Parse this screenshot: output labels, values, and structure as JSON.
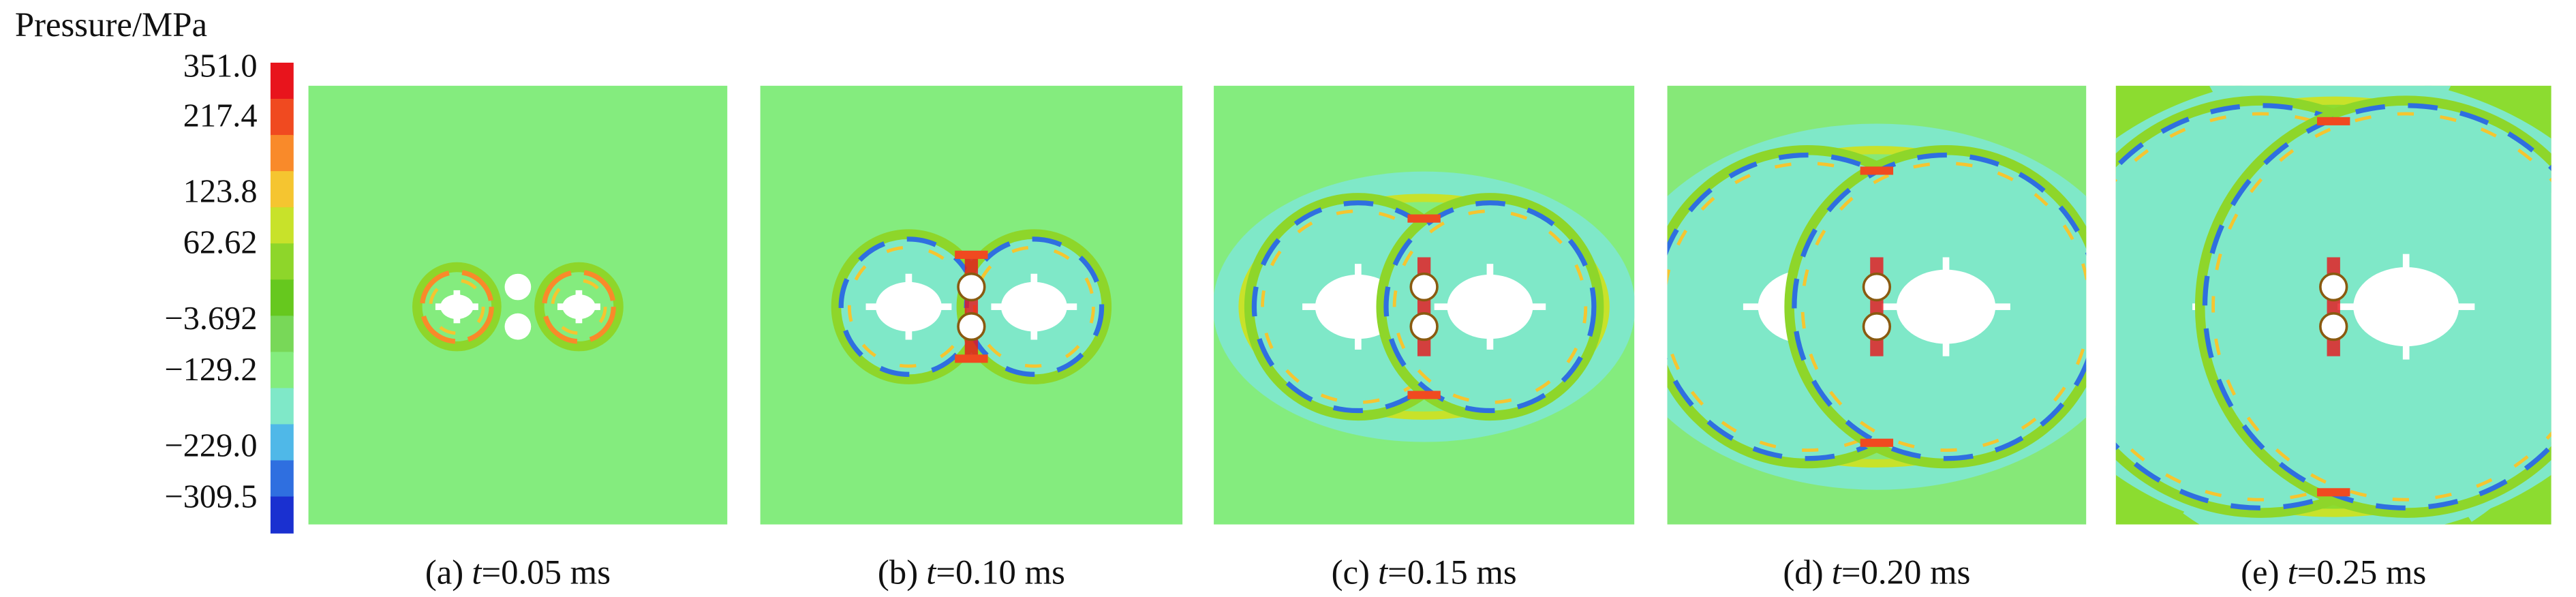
{
  "colorbar": {
    "title": "Pressure/MPa",
    "labels": [
      "351.0",
      "217.4",
      "123.8",
      "62.62",
      "−3.692",
      "−129.2",
      "−229.0",
      "−309.5"
    ]
  },
  "panels": [
    {
      "label": "(a)",
      "var": "t",
      "value": "=0.05 ms"
    },
    {
      "label": "(b)",
      "var": "t",
      "value": "=0.10 ms"
    },
    {
      "label": "(c)",
      "var": "t",
      "value": "=0.15 ms"
    },
    {
      "label": "(d)",
      "var": "t",
      "value": "=0.20 ms"
    },
    {
      "label": "(e)",
      "var": "t",
      "value": "=0.25 ms"
    }
  ]
}
